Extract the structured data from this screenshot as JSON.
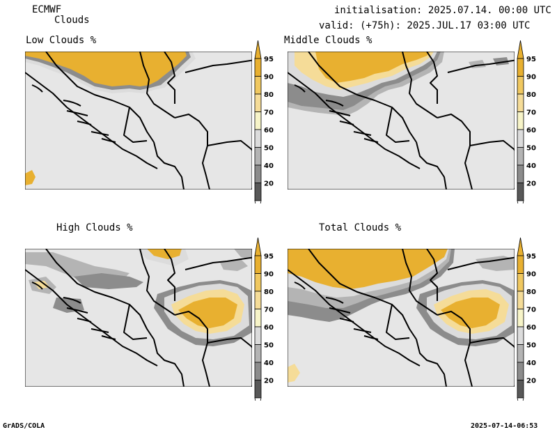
{
  "header": {
    "model": "ECMWF",
    "product": "Clouds",
    "initialisation": "initialisation: 2025.07.14. 00:00 UTC",
    "valid": "valid: (+75h): 2025.JUL.17 03:00 UTC"
  },
  "panels": [
    {
      "title": "Low Clouds %"
    },
    {
      "title": "Middle Clouds %"
    },
    {
      "title": "High Clouds %"
    },
    {
      "title": "Total Clouds %"
    }
  ],
  "colorbar": {
    "labels": [
      "95",
      "90",
      "80",
      "70",
      "60",
      "50",
      "40",
      "20"
    ],
    "colors": [
      "#e8b030",
      "#f0c860",
      "#f5dc98",
      "#f7f4c8",
      "#dcdcdc",
      "#b4b4b4",
      "#8c8c8c",
      "#585858"
    ],
    "background": "#e6e6e6"
  },
  "footer": {
    "left": "GrADS/COLA",
    "right": "2025-07-14-06:53"
  }
}
